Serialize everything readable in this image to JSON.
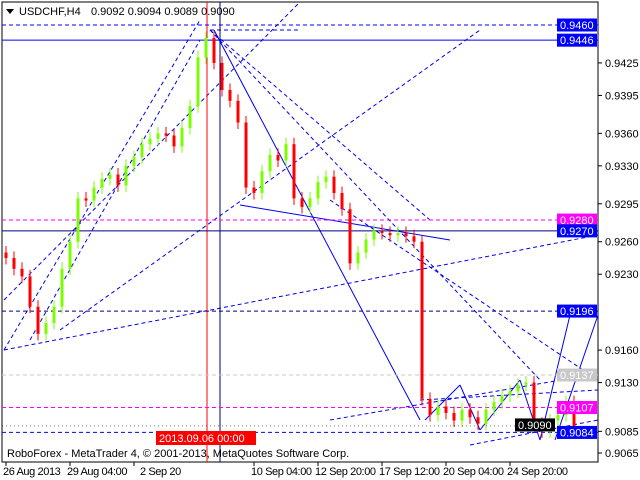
{
  "header": {
    "symbol_title": "USDCHF,H4",
    "ohlc_text": "0.9092 0.9094 0.9089 0.9090"
  },
  "footer": {
    "copyright": "RoboForex - MetaTrader 4, © 2001-2013, MetaQuotes Software Corp."
  },
  "colors": {
    "bull": "#7CFC00",
    "bear": "#FF0000",
    "level_blue": "#0000FF",
    "level_magenta": "#FF00FF",
    "level_gray": "#C8C8C8",
    "current_price": "#000000"
  },
  "chart_data": {
    "type": "candlestick",
    "symbol": "USDCHF",
    "timeframe": "H4",
    "ylim": [
      0.906,
      0.947
    ],
    "grid": false,
    "y_ticks": [
      "0.9425",
      "0.9395",
      "0.9360",
      "0.9330",
      "0.9295",
      "0.9260",
      "0.9230",
      "0.9160",
      "0.9130",
      "0.9085",
      "0.9065"
    ],
    "x_ticks": [
      {
        "label": "26 Aug 2013",
        "index": 0
      },
      {
        "label": "29 Aug 04:00",
        "index": 8
      },
      {
        "label": "2 Sep 20",
        "index": 16
      },
      {
        "label": "10 Sep 04:00",
        "index": 31
      },
      {
        "label": "12 Sep 20:00",
        "index": 39
      },
      {
        "label": "17 Sep 12:00",
        "index": 47
      },
      {
        "label": "20 Sep 04:00",
        "index": 55
      },
      {
        "label": "24 Sep 20:00",
        "index": 63
      }
    ],
    "crosshair_time_label": {
      "label": "2013.09.06 00:00",
      "index": 25
    },
    "closes": [
      0.9245,
      0.9235,
      0.9228,
      0.92,
      0.9175,
      0.9185,
      0.92,
      0.9235,
      0.926,
      0.93,
      0.9298,
      0.931,
      0.9318,
      0.9322,
      0.9312,
      0.933,
      0.9338,
      0.935,
      0.9355,
      0.936,
      0.9358,
      0.9348,
      0.9365,
      0.9385,
      0.943,
      0.9448,
      0.9425,
      0.94,
      0.939,
      0.937,
      0.931,
      0.9305,
      0.9325,
      0.934,
      0.9335,
      0.935,
      0.93,
      0.9292,
      0.93,
      0.9315,
      0.932,
      0.9305,
      0.929,
      0.924,
      0.925,
      0.9262,
      0.927,
      0.9268,
      0.9266,
      0.9268,
      0.9265,
      0.926,
      0.9115,
      0.91,
      0.9108,
      0.9102,
      0.9095,
      0.9105,
      0.9098,
      0.9092,
      0.9105,
      0.9112,
      0.9118,
      0.9122,
      0.9128,
      0.913,
      0.9092,
      0.9085,
      0.9095,
      0.91,
      0.9112,
      0.909
    ],
    "levels": [
      {
        "price": "0.9460",
        "style": "dashed",
        "color": "#0000FF",
        "label_bg": "#0000FF"
      },
      {
        "price": "0.9446",
        "style": "solid",
        "color": "#0000FF",
        "label_bg": "#0000FF"
      },
      {
        "price": "0.9280",
        "style": "dashed",
        "color": "#FF00FF",
        "label_bg": "#FF00FF"
      },
      {
        "price": "0.9270",
        "style": "solid",
        "color": "#000080",
        "label_bg": "#0000FF"
      },
      {
        "price": "0.9196",
        "style": "dashed",
        "color": "#000080",
        "label_bg": "#0000FF"
      },
      {
        "price": "0.9137",
        "style": "dashed",
        "color": "#C8C8C8",
        "label_bg": "#C8C8C8"
      },
      {
        "price": "0.9107",
        "style": "dashed",
        "color": "#FF00FF",
        "label_bg": "#FF00FF"
      },
      {
        "price": "0.9084",
        "style": "dashed",
        "color": "#0000FF",
        "label_bg": "#0000FF"
      }
    ],
    "current_price": "0.9090"
  }
}
